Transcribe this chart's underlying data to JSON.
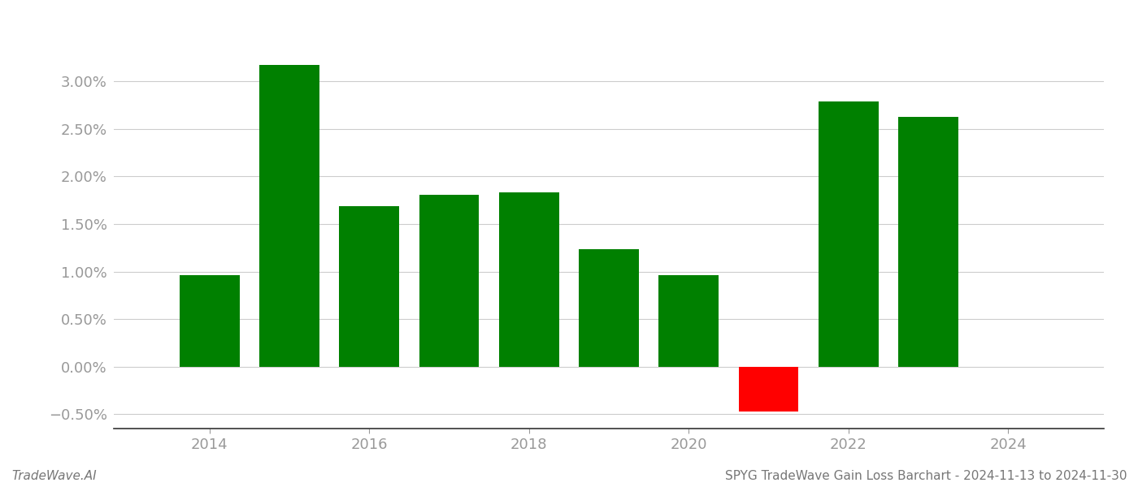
{
  "years": [
    2014,
    2015,
    2016,
    2017,
    2018,
    2019,
    2020,
    2021,
    2022,
    2023
  ],
  "values": [
    0.0096,
    0.0317,
    0.0169,
    0.0181,
    0.0183,
    0.0124,
    0.0096,
    -0.0047,
    0.0279,
    0.0263
  ],
  "bar_colors": [
    "#008000",
    "#008000",
    "#008000",
    "#008000",
    "#008000",
    "#008000",
    "#008000",
    "#ff0000",
    "#008000",
    "#008000"
  ],
  "ylim": [
    -0.0065,
    0.036
  ],
  "yticks": [
    -0.005,
    0.0,
    0.005,
    0.01,
    0.015,
    0.02,
    0.025,
    0.03
  ],
  "title": "SPYG TradeWave Gain Loss Barchart - 2024-11-13 to 2024-11-30",
  "footnote_left": "TradeWave.AI",
  "background_color": "#ffffff",
  "grid_color": "#cccccc",
  "axis_label_color": "#999999",
  "bar_width": 0.75,
  "xlim": [
    2012.8,
    2025.2
  ],
  "xticks": [
    2014,
    2016,
    2018,
    2020,
    2022,
    2024
  ]
}
